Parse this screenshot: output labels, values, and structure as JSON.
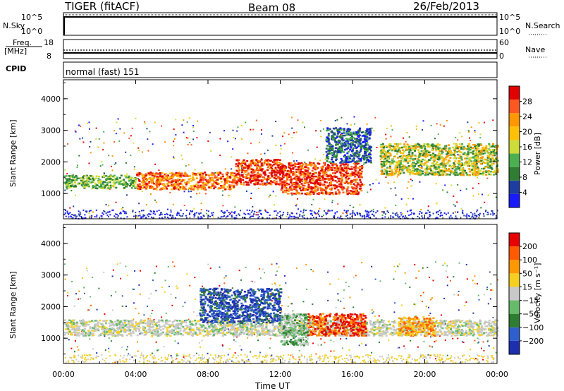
{
  "header": {
    "station": "TIGER (fitACF)",
    "beam": "Beam 08",
    "date": "26/Feb/2013"
  },
  "nsky_panel": {
    "left_label": "N.Sky",
    "right_label": "N.Search",
    "left_ticks": [
      "10^5",
      "10^0"
    ],
    "right_ticks": [
      "10^5",
      "10^0"
    ]
  },
  "freq_panel": {
    "left_label_1": "Freq.",
    "left_label_2": "[MHz]",
    "left_ticks": [
      "18",
      "8"
    ],
    "right_label": "Nave",
    "right_ticks": [
      "60",
      "0"
    ]
  },
  "cpid": {
    "label": "CPID",
    "value": "normal (fast) 151"
  },
  "colors": {
    "power_scale": [
      "#1a1aff",
      "#1f3da0",
      "#2e7d32",
      "#4caf50",
      "#cddc39",
      "#ffc107",
      "#ff9800",
      "#ff5722",
      "#e00000"
    ],
    "velocity_scale": [
      "#1e2fae",
      "#2f5fcc",
      "#2e7d32",
      "#66bb6a",
      "#c8c8c8",
      "#f5d020",
      "#ff9800",
      "#ff5a00",
      "#e60000"
    ]
  },
  "chart_data": [
    {
      "type": "heatmap",
      "name": "power",
      "ylabel": "Slant Range [km]",
      "yticks": [
        1000,
        2000,
        3000,
        4000
      ],
      "ylim": [
        200,
        4600
      ],
      "xlim_hours": [
        0,
        24
      ],
      "colorbar": {
        "label": "Power [dB]",
        "ticks": [
          "28",
          "24",
          "20",
          "16",
          "12",
          "8",
          "4"
        ]
      },
      "features": [
        {
          "t0": 0.0,
          "t1": 4.0,
          "r0": 1180,
          "r1": 1600,
          "level": "green"
        },
        {
          "t0": 4.0,
          "t1": 9.5,
          "r0": 1150,
          "r1": 1700,
          "level": "orange-red"
        },
        {
          "t0": 9.5,
          "t1": 12.0,
          "r0": 1300,
          "r1": 2100,
          "level": "red"
        },
        {
          "t0": 12.0,
          "t1": 16.5,
          "r0": 1000,
          "r1": 2000,
          "level": "red"
        },
        {
          "t0": 14.5,
          "t1": 17.0,
          "r0": 2000,
          "r1": 3100,
          "level": "blue-green"
        },
        {
          "t0": 17.5,
          "t1": 24.0,
          "r0": 1600,
          "r1": 2600,
          "level": "green-orange"
        }
      ]
    },
    {
      "type": "heatmap",
      "name": "velocity",
      "ylabel": "Slant Range [km]",
      "yticks": [
        1000,
        2000,
        3000,
        4000
      ],
      "ylim": [
        200,
        4600
      ],
      "xlim_hours": [
        0,
        24
      ],
      "colorbar": {
        "label": "Velocity [m s⁻¹]",
        "ticks": [
          "200",
          "100",
          "50",
          "15",
          "−15",
          "−50",
          "−100",
          "−200"
        ]
      },
      "features": [
        {
          "t0": 0.0,
          "t1": 24.0,
          "r0": 1100,
          "r1": 1600,
          "level": "grey"
        },
        {
          "t0": 7.5,
          "t1": 12.0,
          "r0": 1500,
          "r1": 2600,
          "level": "blue"
        },
        {
          "t0": 12.0,
          "t1": 13.5,
          "r0": 800,
          "r1": 1800,
          "level": "green"
        },
        {
          "t0": 13.5,
          "t1": 16.7,
          "r0": 1100,
          "r1": 1800,
          "level": "red"
        },
        {
          "t0": 18.5,
          "t1": 20.5,
          "r0": 1100,
          "r1": 1700,
          "level": "orange"
        }
      ]
    }
  ],
  "xaxis": {
    "ticks": [
      "00:00",
      "04:00",
      "08:00",
      "12:00",
      "16:00",
      "20:00",
      "00:00"
    ],
    "label": "Time UT"
  }
}
